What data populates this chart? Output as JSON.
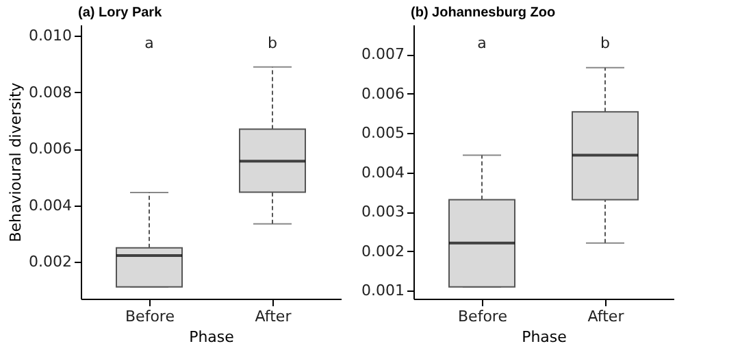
{
  "chart_data": [
    {
      "type": "box",
      "title": "(a) Lory Park",
      "xlabel": "Phase",
      "ylabel": "Behavioural diversity",
      "categories": [
        "Before",
        "After"
      ],
      "series": [
        {
          "color": "#d9d9d9",
          "boxes": [
            {
              "low": 0.00112,
              "q1": 0.00112,
              "median": 0.00223,
              "q3": 0.0025,
              "high": 0.00446
            },
            {
              "low": 0.00335,
              "q1": 0.00447,
              "median": 0.00557,
              "q3": 0.0067,
              "high": 0.0089
            }
          ]
        }
      ],
      "ylim": [
        0.0007,
        0.0104
      ],
      "yticks": [
        0.002,
        0.004,
        0.006,
        0.008,
        {
          "value": 0.01,
          "label": "0.010"
        }
      ],
      "grid": false,
      "annotations": [
        "a",
        "b"
      ]
    },
    {
      "type": "box",
      "title": "(b) Johannesburg Zoo",
      "xlabel": "Phase",
      "categories": [
        "Before",
        "After"
      ],
      "series": [
        {
          "color": "#d9d9d9",
          "boxes": [
            {
              "low": 0.0011,
              "q1": 0.0011,
              "median": 0.00221,
              "q3": 0.00331,
              "high": 0.00444
            },
            {
              "low": 0.00221,
              "q1": 0.00331,
              "median": 0.00444,
              "q3": 0.00554,
              "high": 0.00666
            }
          ]
        }
      ],
      "ylim": [
        0.0008,
        0.00775
      ],
      "yticks": [
        0.001,
        0.002,
        0.003,
        0.004,
        0.005,
        0.006,
        0.007
      ],
      "grid": false,
      "annotations": [
        "a",
        "b"
      ]
    }
  ]
}
